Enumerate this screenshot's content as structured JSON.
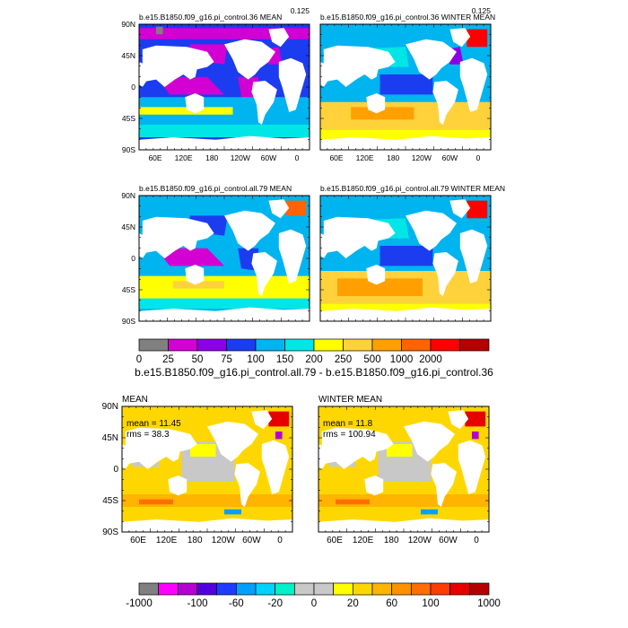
{
  "chart_data": [
    {
      "type": "heatmap",
      "title": "b.e15.B1850.f09_g16.pi_control.36 MEAN",
      "corner_label": "0.125",
      "lat_ticks": [
        "90N",
        "45N",
        "0",
        "45S",
        "90S"
      ],
      "lon_ticks": [
        "60E",
        "120E",
        "180",
        "120W",
        "60W",
        "0"
      ],
      "colorbar": "top",
      "stats": null
    },
    {
      "type": "heatmap",
      "title": "b.e15.B1850.f09_g16.pi_control.36 WINTER MEAN",
      "corner_label": "0.125",
      "lat_ticks": [],
      "lon_ticks": [
        "60E",
        "120E",
        "180",
        "120W",
        "60W",
        "0"
      ],
      "colorbar": "top",
      "stats": null
    },
    {
      "type": "heatmap",
      "title": "b.e15.B1850.f09_g16.pi_control.all.79 MEAN",
      "corner_label": "",
      "lat_ticks": [
        "90N",
        "45N",
        "0",
        "45S",
        "90S"
      ],
      "lon_ticks": [],
      "colorbar": "top",
      "stats": null
    },
    {
      "type": "heatmap",
      "title": "b.e15.B1850.f09_g16.pi_control.all.79 WINTER MEAN",
      "corner_label": "",
      "lat_ticks": [],
      "lon_ticks": [],
      "colorbar": "top",
      "stats": null
    },
    {
      "type": "heatmap",
      "title": "MEAN",
      "corner_label": "",
      "lat_ticks": [
        "90N",
        "45N",
        "0",
        "45S",
        "90S"
      ],
      "lon_ticks": [
        "60E",
        "120E",
        "180",
        "120W",
        "60W",
        "0"
      ],
      "colorbar": "bottom",
      "stats": {
        "mean": "mean = 11.45",
        "rms": "rms = 38.3"
      }
    },
    {
      "type": "heatmap",
      "title": "WINTER MEAN",
      "corner_label": "",
      "lat_ticks": [],
      "lon_ticks": [
        "60E",
        "120E",
        "180",
        "120W",
        "60W",
        "0"
      ],
      "colorbar": "bottom",
      "stats": {
        "mean": "mean = 11.8",
        "rms": "rms = 100.94"
      }
    }
  ],
  "colorbars": {
    "top": {
      "labels": [
        "0",
        "25",
        "50",
        "75",
        "100",
        "150",
        "200",
        "250",
        "500",
        "1000",
        "2000"
      ],
      "colors": [
        "#808080",
        "#d200d2",
        "#8c00e6",
        "#1c3cf0",
        "#00b4f0",
        "#00e6e6",
        "#ffff00",
        "#ffd23c",
        "#ffa000",
        "#ff6400",
        "#ff0000",
        "#b40000"
      ]
    },
    "bottom": {
      "labels": [
        "-1000",
        "-100",
        "-60",
        "-20",
        "0",
        "20",
        "60",
        "100",
        "1000"
      ],
      "colors": [
        "#808080",
        "#ff00ff",
        "#b400d2",
        "#5000dc",
        "#1e3cff",
        "#00a0ff",
        "#00d2ff",
        "#00f0c8",
        "#c8c8c8",
        "#c8c8c8",
        "#ffff00",
        "#ffd700",
        "#ffb400",
        "#ff9100",
        "#ff6e00",
        "#ff3c00",
        "#e60000",
        "#b40000"
      ]
    },
    "diff_title": "b.e15.B1850.f09_g16.pi_control.all.79 - b.e15.B1850.f09_g16.pi_control.36"
  }
}
